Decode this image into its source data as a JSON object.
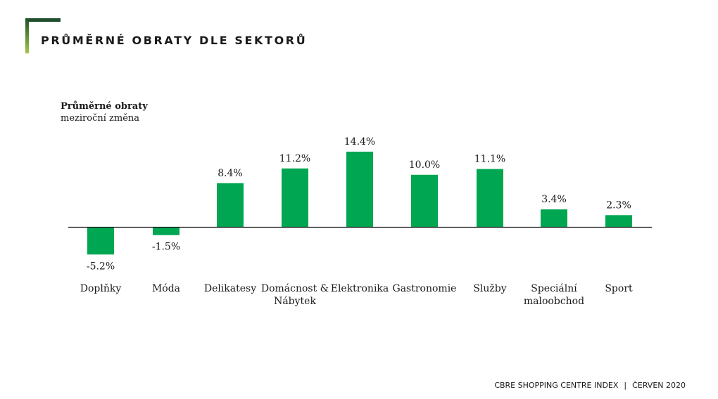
{
  "title": "PRŮMĚRNÉ OBRATY DLE SEKTORŮ",
  "chart_data": {
    "type": "bar",
    "title": "Průměrné obraty",
    "subtitle": "meziroční změna",
    "categories": [
      [
        "Doplňky"
      ],
      [
        "Móda"
      ],
      [
        "Delikatesy"
      ],
      [
        "Domácnost &",
        "Nábytek"
      ],
      [
        "Elektronika"
      ],
      [
        "Gastronomie"
      ],
      [
        "Služby"
      ],
      [
        "Speciální",
        "maloobchod"
      ],
      [
        "Sport"
      ]
    ],
    "values": [
      -5.2,
      -1.5,
      8.4,
      11.2,
      14.4,
      10.0,
      11.1,
      3.4,
      2.3
    ],
    "value_labels": [
      "-5.2%",
      "-1.5%",
      "8.4%",
      "11.2%",
      "14.4%",
      "10.0%",
      "11.1%",
      "3.4%",
      "2.3%"
    ],
    "unit": "%",
    "bar_color": "#00a651",
    "grid": false,
    "legend": "none"
  },
  "footer": {
    "source": "CBRE SHOPPING CENTRE INDEX",
    "separator": "|",
    "date": "ČERVEN 2020"
  }
}
